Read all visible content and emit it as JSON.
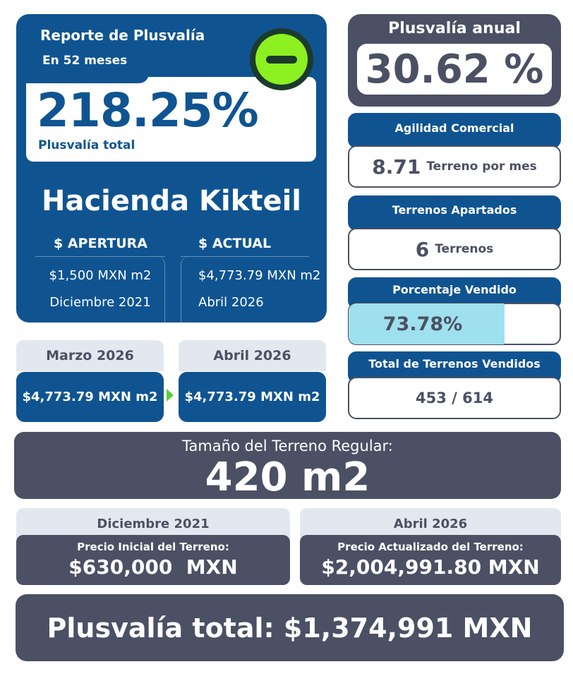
{
  "report": {
    "title": "Reporte de Plusvalía",
    "period": "En 52 meses",
    "total_percent": "218.25%",
    "total_label": "Plusvalía total",
    "status_icon": "minus-circle-icon",
    "place": "Hacienda Kikteil",
    "opening": {
      "heading": "$ APERTURA",
      "price": "$1,500 MXN m2",
      "date": "Diciembre 2021"
    },
    "current": {
      "heading": "$ ACTUAL",
      "price": "$4,773.79 MXN m2",
      "date": "Abril 2026"
    }
  },
  "monthly": {
    "previous": {
      "month": "Marzo 2026",
      "price": "$4,773.79 MXN m2"
    },
    "current": {
      "month": "Abril 2026",
      "price": "$4,773.79 MXN m2"
    }
  },
  "annual": {
    "title": "Plusvalía anual",
    "value": "30.62 %"
  },
  "stats": {
    "agility": {
      "title": "Agilidad Comercial",
      "value": "8.71",
      "unit": "Terreno por mes"
    },
    "reserved": {
      "title": "Terrenos Apartados",
      "value": "6",
      "unit": "Terrenos"
    },
    "sold_percent": {
      "title": "Porcentaje Vendido",
      "value": "73.78%",
      "fraction": 0.7378
    },
    "sold_total": {
      "title": "Total de Terrenos Vendidos",
      "value": "453 / 614"
    }
  },
  "lot_size": {
    "label": "Tamaño del Terreno Regular:",
    "value": "420 m2"
  },
  "prices": {
    "initial": {
      "date": "Diciembre 2021",
      "label": "Precio Inicial del Terreno:",
      "value": "$630,000  MXN"
    },
    "updated": {
      "date": "Abril 2026",
      "label": "Precio Actualizado del Terreno:",
      "value": "$2,004,991.80 MXN"
    }
  },
  "gain_total": "Plusvalía total: $1,374,991 MXN",
  "colors": {
    "primary_blue": "#0f5491",
    "slate": "#4b5064",
    "badge_green": "#8cf021",
    "progress": "#9fe0ee",
    "arrow_green": "#56cf3c"
  }
}
